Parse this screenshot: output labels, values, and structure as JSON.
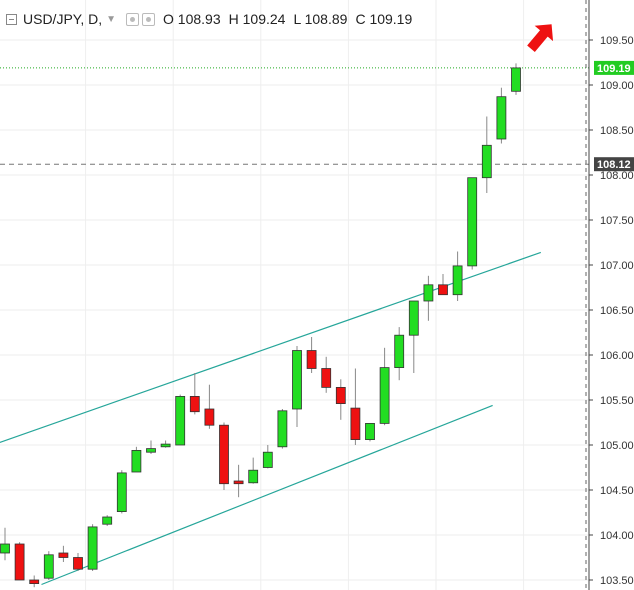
{
  "legend": {
    "symbol": "USD/JPY, D,",
    "open": "O 108.93",
    "high": "H 109.24",
    "low": "L 108.89",
    "close": "C 109.19"
  },
  "colors": {
    "up": "#22dd22",
    "down": "#ee1111",
    "wick": "#888888",
    "channel": "#26a69a",
    "price_line": "#22aa22",
    "price_tag": "#22cc22",
    "level_line": "#777777",
    "level_tag": "#444444",
    "arrow": "#ee1111",
    "grid": "#eeeeee"
  },
  "chart_data": {
    "type": "candlestick",
    "symbol": "USD/JPY",
    "timeframe": "D",
    "ylim": [
      103.45,
      109.88
    ],
    "y_ticks": [
      "103.50",
      "104.00",
      "104.50",
      "105.00",
      "105.50",
      "106.00",
      "106.50",
      "107.00",
      "107.50",
      "108.00",
      "108.50",
      "109.00",
      "109.50"
    ],
    "grid": true,
    "candles": [
      {
        "o": 103.8,
        "h": 104.08,
        "l": 103.72,
        "c": 103.9
      },
      {
        "o": 103.9,
        "h": 103.92,
        "l": 103.5,
        "c": 103.5
      },
      {
        "o": 103.5,
        "h": 103.55,
        "l": 103.42,
        "c": 103.46
      },
      {
        "o": 103.52,
        "h": 103.82,
        "l": 103.5,
        "c": 103.78
      },
      {
        "o": 103.8,
        "h": 103.88,
        "l": 103.7,
        "c": 103.75
      },
      {
        "o": 103.75,
        "h": 103.8,
        "l": 103.6,
        "c": 103.62
      },
      {
        "o": 103.62,
        "h": 104.12,
        "l": 103.6,
        "c": 104.09
      },
      {
        "o": 104.12,
        "h": 104.22,
        "l": 104.1,
        "c": 104.2
      },
      {
        "o": 104.26,
        "h": 104.72,
        "l": 104.24,
        "c": 104.69
      },
      {
        "o": 104.7,
        "h": 104.98,
        "l": 104.7,
        "c": 104.94
      },
      {
        "o": 104.92,
        "h": 105.05,
        "l": 104.9,
        "c": 104.96
      },
      {
        "o": 104.98,
        "h": 105.05,
        "l": 104.97,
        "c": 105.01
      },
      {
        "o": 105.0,
        "h": 105.56,
        "l": 105.0,
        "c": 105.54
      },
      {
        "o": 105.54,
        "h": 105.8,
        "l": 105.34,
        "c": 105.37
      },
      {
        "o": 105.4,
        "h": 105.67,
        "l": 105.18,
        "c": 105.22
      },
      {
        "o": 105.22,
        "h": 105.25,
        "l": 104.5,
        "c": 104.57
      },
      {
        "o": 104.6,
        "h": 104.78,
        "l": 104.42,
        "c": 104.57
      },
      {
        "o": 104.58,
        "h": 104.86,
        "l": 104.57,
        "c": 104.72
      },
      {
        "o": 104.75,
        "h": 105.0,
        "l": 104.74,
        "c": 104.92
      },
      {
        "o": 104.98,
        "h": 105.4,
        "l": 104.96,
        "c": 105.38
      },
      {
        "o": 105.4,
        "h": 106.1,
        "l": 105.2,
        "c": 106.05
      },
      {
        "o": 106.05,
        "h": 106.2,
        "l": 105.8,
        "c": 105.85
      },
      {
        "o": 105.85,
        "h": 105.98,
        "l": 105.58,
        "c": 105.64
      },
      {
        "o": 105.64,
        "h": 105.73,
        "l": 105.28,
        "c": 105.46
      },
      {
        "o": 105.41,
        "h": 105.85,
        "l": 105.0,
        "c": 105.06
      },
      {
        "o": 105.06,
        "h": 105.24,
        "l": 105.04,
        "c": 105.24
      },
      {
        "o": 105.24,
        "h": 106.08,
        "l": 105.22,
        "c": 105.86
      },
      {
        "o": 105.86,
        "h": 106.31,
        "l": 105.72,
        "c": 106.22
      },
      {
        "o": 106.22,
        "h": 106.6,
        "l": 105.8,
        "c": 106.6
      },
      {
        "o": 106.6,
        "h": 106.88,
        "l": 106.38,
        "c": 106.78
      },
      {
        "o": 106.78,
        "h": 106.9,
        "l": 106.67,
        "c": 106.67
      },
      {
        "o": 106.67,
        "h": 107.15,
        "l": 106.6,
        "c": 106.99
      },
      {
        "o": 106.99,
        "h": 107.97,
        "l": 106.95,
        "c": 107.97
      },
      {
        "o": 107.97,
        "h": 108.65,
        "l": 107.8,
        "c": 108.33
      },
      {
        "o": 108.4,
        "h": 108.97,
        "l": 108.35,
        "c": 108.87
      },
      {
        "o": 108.93,
        "h": 109.24,
        "l": 108.89,
        "c": 109.19
      }
    ],
    "price_line": {
      "value": 109.19,
      "label": "109.19"
    },
    "horizontal_level": {
      "value": 108.12,
      "label": "108.12"
    },
    "channel": {
      "upper": [
        {
          "i": -0.5,
          "v": 105.02
        },
        {
          "i": 36.7,
          "v": 107.14
        }
      ],
      "lower": [
        {
          "i": 2.5,
          "v": 103.45
        },
        {
          "i": 33.4,
          "v": 105.44
        }
      ]
    },
    "arrow": {
      "direction": "up-right",
      "color": "red"
    }
  }
}
